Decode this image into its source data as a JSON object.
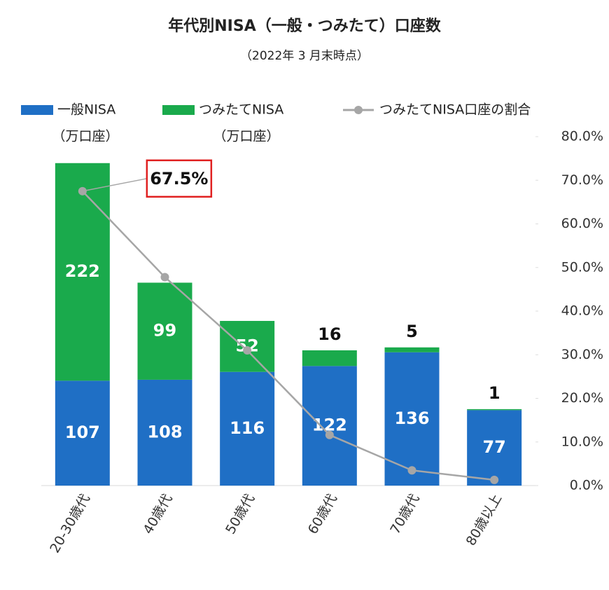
{
  "chart_data": {
    "type": "bar",
    "title": "年代別NISA（一般・つみたて）口座数",
    "subtitle": "（2022年 3 月末時点）",
    "categories": [
      "20-30歳代",
      "40歳代",
      "50歳代",
      "60歳代",
      "70歳代",
      "80歳以上"
    ],
    "stacked": true,
    "ylim": [
      0,
      356
    ],
    "y2lim": [
      0,
      80
    ],
    "y2ticks": [
      {
        "value": 0,
        "label": "0.0%"
      },
      {
        "value": 10,
        "label": "10.0%"
      },
      {
        "value": 20,
        "label": "20.0%"
      },
      {
        "value": 30,
        "label": "30.0%"
      },
      {
        "value": 40,
        "label": "40.0%"
      },
      {
        "value": 50,
        "label": "50.0%"
      },
      {
        "value": 60,
        "label": "60.0%"
      },
      {
        "value": 70,
        "label": "70.0%"
      },
      {
        "value": 80,
        "label": "80.0%"
      }
    ],
    "series": [
      {
        "name": "一般NISA",
        "unit": "（万口座）",
        "color": "#1f6fc5",
        "values": [
          107,
          108,
          116,
          122,
          136,
          77
        ]
      },
      {
        "name": "つみたてNISA",
        "unit": "（万口座）",
        "color": "#1aaa4c",
        "values": [
          222,
          99,
          52,
          16,
          5,
          1
        ]
      },
      {
        "name": "つみたてNISA口座の割合",
        "type": "line",
        "axis": "y2",
        "color": "#a6a6a6",
        "values": [
          67.5,
          47.8,
          31.0,
          11.6,
          3.5,
          1.3
        ],
        "value_labels": [
          "67.5%",
          null,
          null,
          null,
          null,
          null
        ]
      }
    ]
  }
}
